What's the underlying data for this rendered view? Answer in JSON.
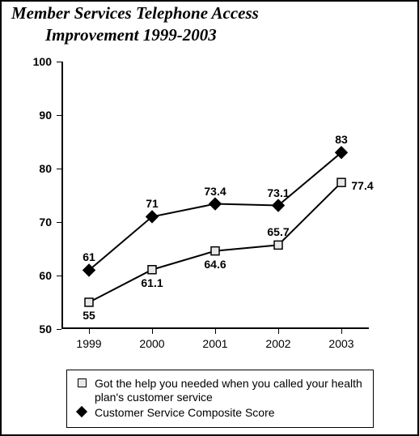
{
  "title_line1": "Member Services Telephone Access",
  "title_line2": "Improvement 1999-2003",
  "chart": {
    "type": "line",
    "ylim": [
      50,
      100
    ],
    "ytick_step": 10,
    "yticks": [
      50,
      60,
      70,
      80,
      90,
      100
    ],
    "categories": [
      "1999",
      "2000",
      "2001",
      "2002",
      "2003"
    ],
    "background_color": "#ffffff",
    "axis_color": "#000000",
    "label_fontsize": 14,
    "line_width": 2,
    "marker_size": 10,
    "series": [
      {
        "name": "Got the help you needed when you called your health plan's customer service",
        "marker": "square",
        "color": "#000000",
        "fill": "#e8e8e8",
        "values": [
          55,
          61.1,
          64.6,
          65.7,
          77.4
        ],
        "labels": [
          "55",
          "61.1",
          "64.6",
          "65.7",
          "77.4"
        ],
        "label_pos": [
          "below",
          "below",
          "below",
          "above",
          "right"
        ]
      },
      {
        "name": "Customer Service Composite Score",
        "marker": "diamond",
        "color": "#000000",
        "fill": "#000000",
        "values": [
          61,
          71,
          73.4,
          73.1,
          83
        ],
        "labels": [
          "61",
          "71",
          "73.4",
          "73.1",
          "83"
        ],
        "label_pos": [
          "above",
          "above",
          "above",
          "above",
          "above"
        ]
      }
    ]
  },
  "legend_item_1": "Got the help you needed when you called your health plan's customer service",
  "legend_item_2": "Customer Service Composite Score"
}
